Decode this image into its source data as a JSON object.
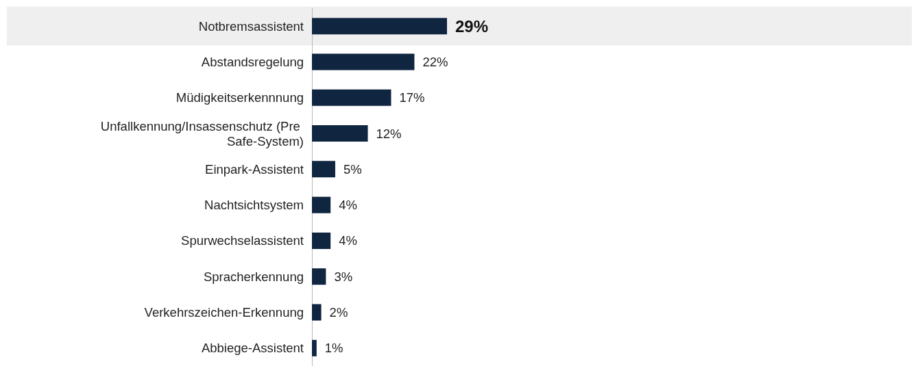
{
  "chart_data": {
    "type": "bar",
    "orientation": "horizontal",
    "categories": [
      "Notbremsassistent",
      "Abstandsregelung",
      "Müdigkeitserkennnung",
      "Unfallkennung/Insassenschutz (Pre Safe-System)",
      "Einpark-Assistent",
      "Nachtsichtsystem",
      "Spurwechselassistent",
      "Spracherkennung",
      "Verkehrszeichen-Erkennung",
      "Abbiege-Assistent"
    ],
    "values": [
      29,
      22,
      17,
      12,
      5,
      4,
      4,
      3,
      2,
      1
    ],
    "value_labels": [
      "29%",
      "22%",
      "17%",
      "12%",
      "5%",
      "4%",
      "4%",
      "3%",
      "2%",
      "1%"
    ],
    "color": "#0f2540",
    "tick_labels": "y",
    "bands": [
      {
        "axis": "y",
        "from": "Notbremsassistent",
        "to": "Notbremsassistent",
        "color": "#efefef"
      }
    ]
  }
}
